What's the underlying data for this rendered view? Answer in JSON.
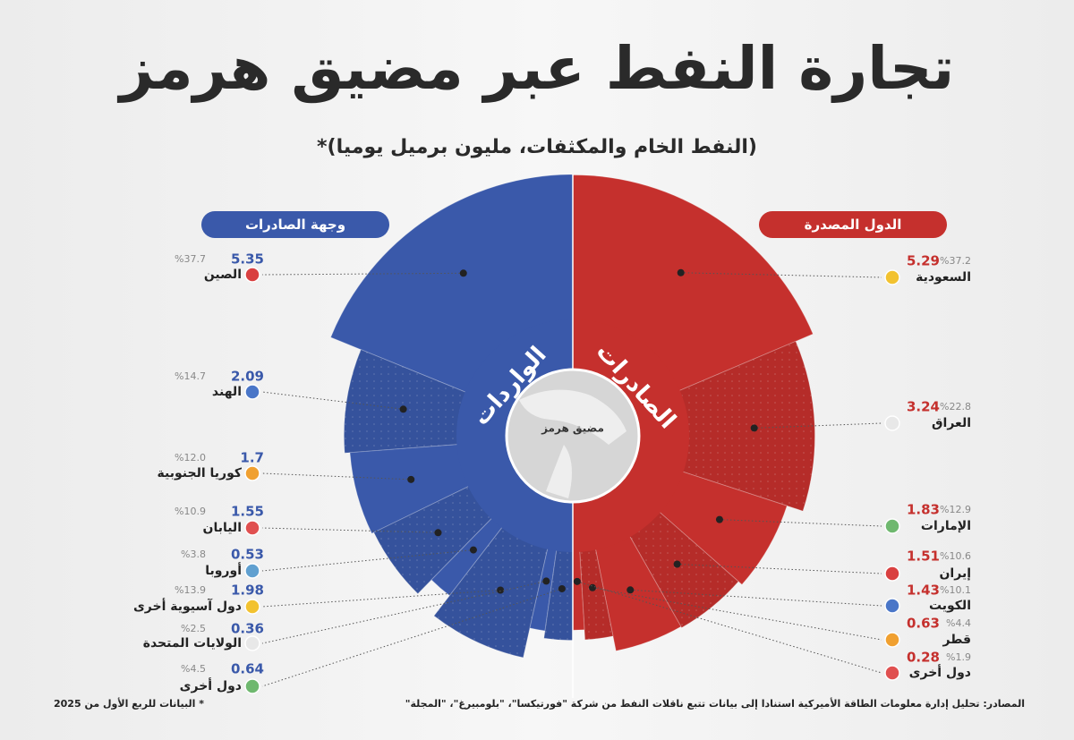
{
  "chart_data": {
    "type": "split-radial",
    "title": "تجارة النفط عبر مضيق هرمز",
    "subtitle": "(النفط الخام والمكثفات، مليون برميل يوميا)*",
    "center_label": "مضيق هرمز",
    "series": [
      {
        "name": "الدول المصدرة",
        "center_label": "الصادرات",
        "side": "right",
        "color": "#c5302d",
        "categories": [
          "السعودية",
          "العراق",
          "الإمارات",
          "إيران",
          "الكويت",
          "قطر",
          "دول أخرى"
        ],
        "values": [
          5.29,
          3.24,
          1.83,
          1.51,
          1.43,
          0.63,
          0.28
        ],
        "shares": [
          {
            "value": 37.2,
            "label": "%37.2"
          },
          {
            "value": 22.8,
            "label": "%22.8"
          },
          {
            "value": 12.9,
            "label": "%12.9"
          },
          {
            "value": 10.6,
            "label": "%10.6"
          },
          {
            "value": 10.1,
            "label": "%10.1"
          },
          {
            "value": 4.4,
            "label": "%4.4"
          },
          {
            "value": 1.9,
            "label": "%1.9"
          }
        ]
      },
      {
        "name": "وجهة الصادرات",
        "center_label": "الواردات",
        "side": "left",
        "color": "#3a59aa",
        "categories": [
          "الصين",
          "الهند",
          "كوريا الجنوبية",
          "اليابان",
          "أوروبا",
          "دول آسيوية أخرى",
          "الولايات المتحدة",
          "دول أخرى"
        ],
        "values": [
          5.35,
          2.09,
          1.7,
          1.55,
          0.53,
          1.98,
          0.36,
          0.64
        ],
        "shares": [
          {
            "value": 37.7,
            "label": "%37.7"
          },
          {
            "value": 14.7,
            "label": "%14.7"
          },
          {
            "value": 12.0,
            "label": "%12.0"
          },
          {
            "value": 10.9,
            "label": "%10.9"
          },
          {
            "value": 3.8,
            "label": "%3.8"
          },
          {
            "value": 13.9,
            "label": "%13.9"
          },
          {
            "value": 2.5,
            "label": "%2.5"
          },
          {
            "value": 4.5,
            "label": "%4.5"
          }
        ]
      }
    ],
    "source": "المصادر: تحليل إدارة معلومات الطاقة الأميركية استنادا إلى بيانات تتبع ناقلات النفط من شركة \"فورتيكسا\"، \"بلومبيرغ\"، \"المجلة\"",
    "note": "* البيانات للربع الأول من 2025"
  }
}
